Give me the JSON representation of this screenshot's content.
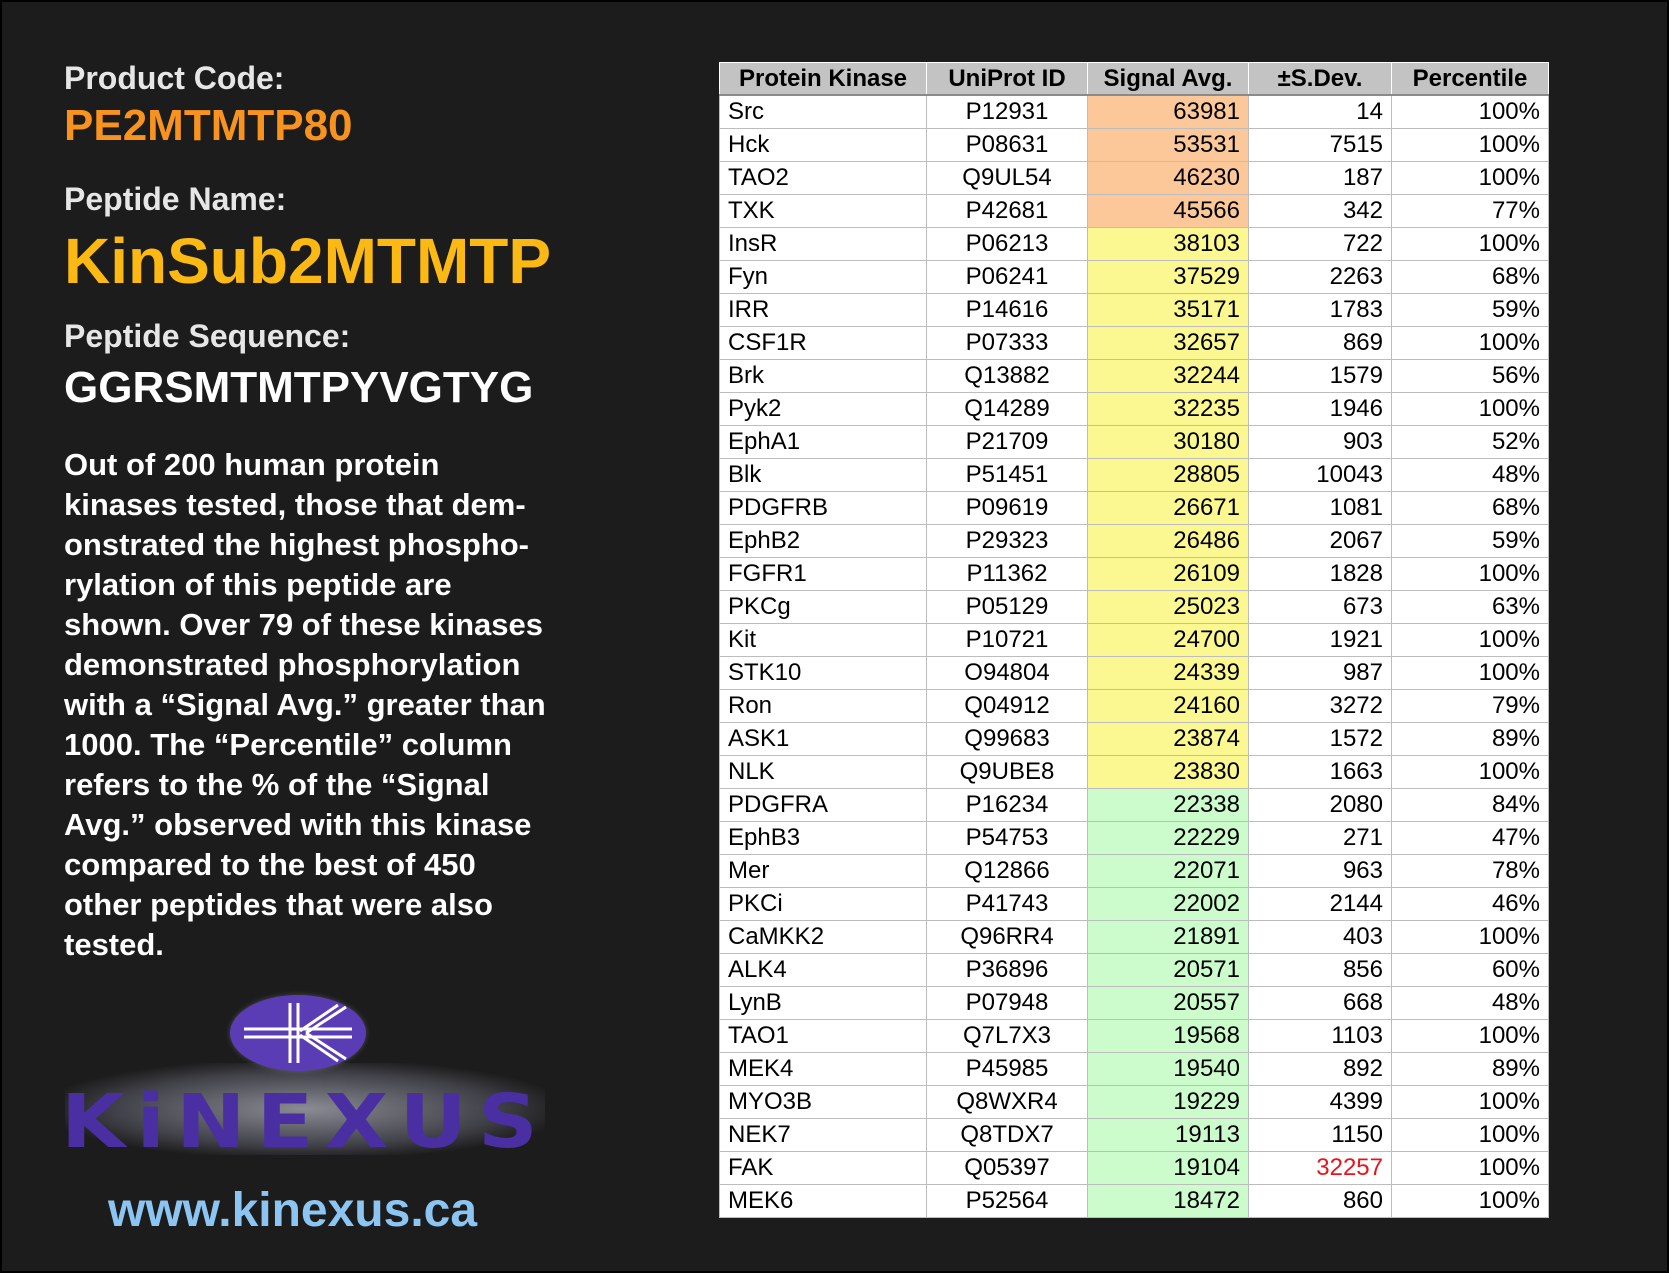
{
  "product_code_label": "Product Code:",
  "product_code": "PE2MTMTP80",
  "peptide_name_label": "Peptide Name:",
  "peptide_name": "KinSub2MTMTP",
  "peptide_sequence_label": "Peptide Sequence:",
  "peptide_sequence": "GGRSMTMTPYVGTYG",
  "description": "Out of 200 human protein\nkinases tested, those that dem-\nonstrated the highest phospho-\nrylation of this peptide are\nshown. Over 79 of these kinases\ndemonstrated phosphorylation\nwith a “Signal Avg.” greater than\n1000. The “Percentile” column\nrefers to the % of the “Signal\nAvg.” observed with this kinase\ncompared to the best of 450\nother peptides that were also\ntested.",
  "logo_text": "KiNEXUS",
  "website": "www.kinexus.ca",
  "colors": {
    "orange": "#fcc89a",
    "yellow": "#fcf891",
    "green": "#ccfccc",
    "highlight_red": "#e8141c"
  },
  "table": {
    "headers": [
      "Protein Kinase",
      "UniProt ID",
      "Signal Avg.",
      "±S.Dev.",
      "Percentile"
    ],
    "rows": [
      {
        "kinase": "Src",
        "uniprot": "P12931",
        "signal": "63981",
        "sdev": "14",
        "pct": "100%",
        "band": "orange"
      },
      {
        "kinase": "Hck",
        "uniprot": "P08631",
        "signal": "53531",
        "sdev": "7515",
        "pct": "100%",
        "band": "orange"
      },
      {
        "kinase": "TAO2",
        "uniprot": "Q9UL54",
        "signal": "46230",
        "sdev": "187",
        "pct": "100%",
        "band": "orange"
      },
      {
        "kinase": "TXK",
        "uniprot": "P42681",
        "signal": "45566",
        "sdev": "342",
        "pct": "77%",
        "band": "orange"
      },
      {
        "kinase": "InsR",
        "uniprot": "P06213",
        "signal": "38103",
        "sdev": "722",
        "pct": "100%",
        "band": "yellow"
      },
      {
        "kinase": "Fyn",
        "uniprot": "P06241",
        "signal": "37529",
        "sdev": "2263",
        "pct": "68%",
        "band": "yellow"
      },
      {
        "kinase": "IRR",
        "uniprot": "P14616",
        "signal": "35171",
        "sdev": "1783",
        "pct": "59%",
        "band": "yellow"
      },
      {
        "kinase": "CSF1R",
        "uniprot": "P07333",
        "signal": "32657",
        "sdev": "869",
        "pct": "100%",
        "band": "yellow"
      },
      {
        "kinase": "Brk",
        "uniprot": "Q13882",
        "signal": "32244",
        "sdev": "1579",
        "pct": "56%",
        "band": "yellow"
      },
      {
        "kinase": "Pyk2",
        "uniprot": "Q14289",
        "signal": "32235",
        "sdev": "1946",
        "pct": "100%",
        "band": "yellow"
      },
      {
        "kinase": "EphA1",
        "uniprot": "P21709",
        "signal": "30180",
        "sdev": "903",
        "pct": "52%",
        "band": "yellow"
      },
      {
        "kinase": "Blk",
        "uniprot": "P51451",
        "signal": "28805",
        "sdev": "10043",
        "pct": "48%",
        "band": "yellow"
      },
      {
        "kinase": "PDGFRB",
        "uniprot": "P09619",
        "signal": "26671",
        "sdev": "1081",
        "pct": "68%",
        "band": "yellow"
      },
      {
        "kinase": "EphB2",
        "uniprot": "P29323",
        "signal": "26486",
        "sdev": "2067",
        "pct": "59%",
        "band": "yellow"
      },
      {
        "kinase": "FGFR1",
        "uniprot": "P11362",
        "signal": "26109",
        "sdev": "1828",
        "pct": "100%",
        "band": "yellow"
      },
      {
        "kinase": "PKCg",
        "uniprot": "P05129",
        "signal": "25023",
        "sdev": "673",
        "pct": "63%",
        "band": "yellow"
      },
      {
        "kinase": "Kit",
        "uniprot": "P10721",
        "signal": "24700",
        "sdev": "1921",
        "pct": "100%",
        "band": "yellow"
      },
      {
        "kinase": "STK10",
        "uniprot": "O94804",
        "signal": "24339",
        "sdev": "987",
        "pct": "100%",
        "band": "yellow"
      },
      {
        "kinase": "Ron",
        "uniprot": "Q04912",
        "signal": "24160",
        "sdev": "3272",
        "pct": "79%",
        "band": "yellow"
      },
      {
        "kinase": "ASK1",
        "uniprot": "Q99683",
        "signal": "23874",
        "sdev": "1572",
        "pct": "89%",
        "band": "yellow"
      },
      {
        "kinase": "NLK",
        "uniprot": "Q9UBE8",
        "signal": "23830",
        "sdev": "1663",
        "pct": "100%",
        "band": "yellow"
      },
      {
        "kinase": "PDGFRA",
        "uniprot": "P16234",
        "signal": "22338",
        "sdev": "2080",
        "pct": "84%",
        "band": "green"
      },
      {
        "kinase": "EphB3",
        "uniprot": "P54753",
        "signal": "22229",
        "sdev": "271",
        "pct": "47%",
        "band": "green"
      },
      {
        "kinase": "Mer",
        "uniprot": "Q12866",
        "signal": "22071",
        "sdev": "963",
        "pct": "78%",
        "band": "green"
      },
      {
        "kinase": "PKCi",
        "uniprot": "P41743",
        "signal": "22002",
        "sdev": "2144",
        "pct": "46%",
        "band": "green"
      },
      {
        "kinase": "CaMKK2",
        "uniprot": "Q96RR4",
        "signal": "21891",
        "sdev": "403",
        "pct": "100%",
        "band": "green"
      },
      {
        "kinase": "ALK4",
        "uniprot": "P36896",
        "signal": "20571",
        "sdev": "856",
        "pct": "60%",
        "band": "green"
      },
      {
        "kinase": "LynB",
        "uniprot": "P07948",
        "signal": "20557",
        "sdev": "668",
        "pct": "48%",
        "band": "green"
      },
      {
        "kinase": "TAO1",
        "uniprot": "Q7L7X3",
        "signal": "19568",
        "sdev": "1103",
        "pct": "100%",
        "band": "green"
      },
      {
        "kinase": "MEK4",
        "uniprot": "P45985",
        "signal": "19540",
        "sdev": "892",
        "pct": "89%",
        "band": "green"
      },
      {
        "kinase": "MYO3B",
        "uniprot": "Q8WXR4",
        "signal": "19229",
        "sdev": "4399",
        "pct": "100%",
        "band": "green"
      },
      {
        "kinase": "NEK7",
        "uniprot": "Q8TDX7",
        "signal": "19113",
        "sdev": "1150",
        "pct": "100%",
        "band": "green"
      },
      {
        "kinase": "FAK",
        "uniprot": "Q05397",
        "signal": "19104",
        "sdev": "32257",
        "pct": "100%",
        "band": "green",
        "sdev_highlight": true
      },
      {
        "kinase": "MEK6",
        "uniprot": "P52564",
        "signal": "18472",
        "sdev": "860",
        "pct": "100%",
        "band": "green"
      }
    ]
  }
}
